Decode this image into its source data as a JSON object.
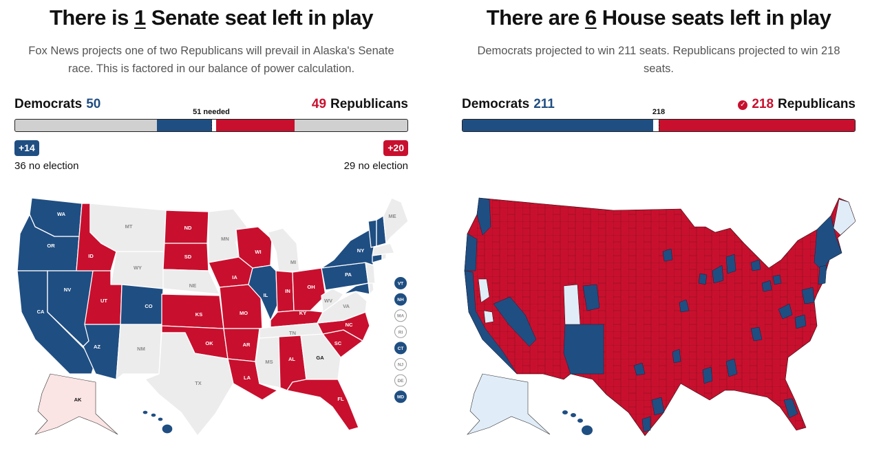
{
  "senate": {
    "title_pre": "There is ",
    "title_num": "1",
    "title_post": " Senate seat left in play",
    "subtitle_line1": "Fox News projects one of two Republicans will prevail in Alaska's Senate",
    "subtitle_line2": "race. This is factored in our balance of power calculation.",
    "dem_label": "Democrats",
    "dem_seats": "50",
    "rep_label": "Republicans",
    "rep_seats": "49",
    "needed_label": "51 needed",
    "dem_gain": "+14",
    "rep_gain": "+20",
    "dem_no_election": "36 no election",
    "rep_no_election": "29 no election",
    "bar": {
      "total": 100,
      "dem_holdover": 36,
      "dem_won": 14,
      "rep_won": 20,
      "rep_holdover": 29
    },
    "states": {
      "blue": [
        "WA",
        "OR",
        "CA",
        "NV",
        "AZ",
        "CO",
        "IL",
        "NY",
        "PA",
        "VT",
        "NH",
        "CT",
        "MD"
      ],
      "red": [
        "ID",
        "UT",
        "ND",
        "SD",
        "KS",
        "OK",
        "IA",
        "MO",
        "AR",
        "LA",
        "WI",
        "IN",
        "OH",
        "KY",
        "NC",
        "SC",
        "AL",
        "FL"
      ],
      "gray": [
        "MT",
        "WY",
        "NE",
        "MN",
        "MI",
        "TX",
        "NM",
        "MS",
        "TN",
        "WV",
        "VA",
        "GA",
        "ME",
        "MA",
        "RI",
        "NJ",
        "DE"
      ],
      "pending": [
        "AK"
      ]
    },
    "small_states": [
      {
        "abbr": "VT",
        "party": "dem"
      },
      {
        "abbr": "NH",
        "party": "dem"
      },
      {
        "abbr": "MA",
        "party": "none"
      },
      {
        "abbr": "RI",
        "party": "none"
      },
      {
        "abbr": "CT",
        "party": "dem"
      },
      {
        "abbr": "NJ",
        "party": "none"
      },
      {
        "abbr": "DE",
        "party": "none"
      },
      {
        "abbr": "MD",
        "party": "dem"
      }
    ]
  },
  "house": {
    "title_pre": "There are ",
    "title_num": "6",
    "title_post": " House seats left in play",
    "subtitle_line1": "Democrats projected to win 211 seats. Republicans projected to win 218",
    "subtitle_line2": "seats.",
    "dem_label": "Democrats",
    "dem_seats": "211",
    "rep_label": "Republicans",
    "rep_seats": "218",
    "needed_label": "218",
    "bar": {
      "total": 435,
      "dem": 211,
      "rep": 218
    }
  },
  "colors": {
    "dem": "#1f4e82",
    "rep": "#c8102e",
    "none": "#ececec",
    "pending": "#fbe4e4",
    "house_pending": "#e0edf8"
  }
}
